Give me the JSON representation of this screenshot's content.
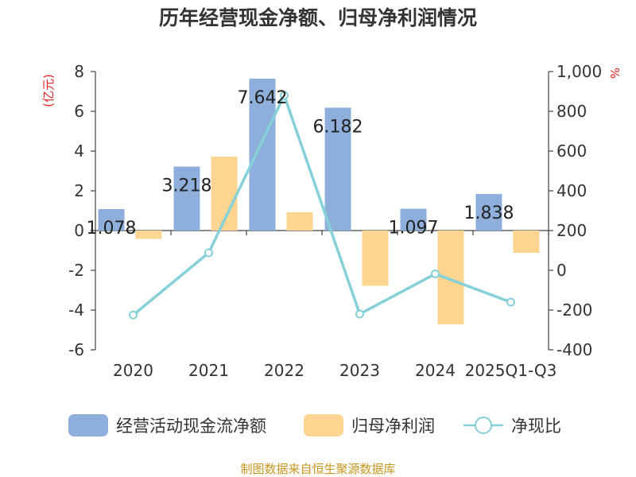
{
  "chart_data": {
    "type": "bar+line",
    "title": "历年经营现金净额、归母净利润情况",
    "categories": [
      "2020",
      "2021",
      "2022",
      "2023",
      "2024",
      "2025Q1-Q3"
    ],
    "left_axis": {
      "unit": "(亿元)",
      "min": -6,
      "max": 8,
      "ticks": [
        -6,
        -4,
        -2,
        0,
        2,
        4,
        6,
        8
      ]
    },
    "right_axis": {
      "unit": "%",
      "min": -400,
      "max": 1000,
      "ticks": [
        -400,
        -200,
        0,
        200,
        400,
        600,
        800,
        1000
      ],
      "tick_labels": [
        "-400",
        "-200",
        "0",
        "200",
        "400",
        "600",
        "800",
        "1,000"
      ]
    },
    "series": [
      {
        "name": "经营活动现金流净额",
        "type": "bar",
        "axis": "left",
        "color": "#8eaedb",
        "values": [
          1.078,
          3.218,
          7.642,
          6.182,
          1.097,
          1.838
        ],
        "labels": [
          "1.078",
          "3.218",
          "7.642",
          "6.182",
          "1.097",
          "1.838"
        ]
      },
      {
        "name": "归母净利润",
        "type": "bar",
        "axis": "left",
        "color": "#ffd591",
        "values": [
          -0.42,
          3.72,
          0.92,
          -2.78,
          -4.72,
          -1.12
        ]
      },
      {
        "name": "净现比",
        "type": "line",
        "axis": "right",
        "color": "#86d0d8",
        "values": [
          -225,
          88,
          880,
          -220,
          -18,
          -160
        ]
      }
    ],
    "legend_position": "bottom",
    "source": "制图数据来自恒生聚源数据库"
  }
}
